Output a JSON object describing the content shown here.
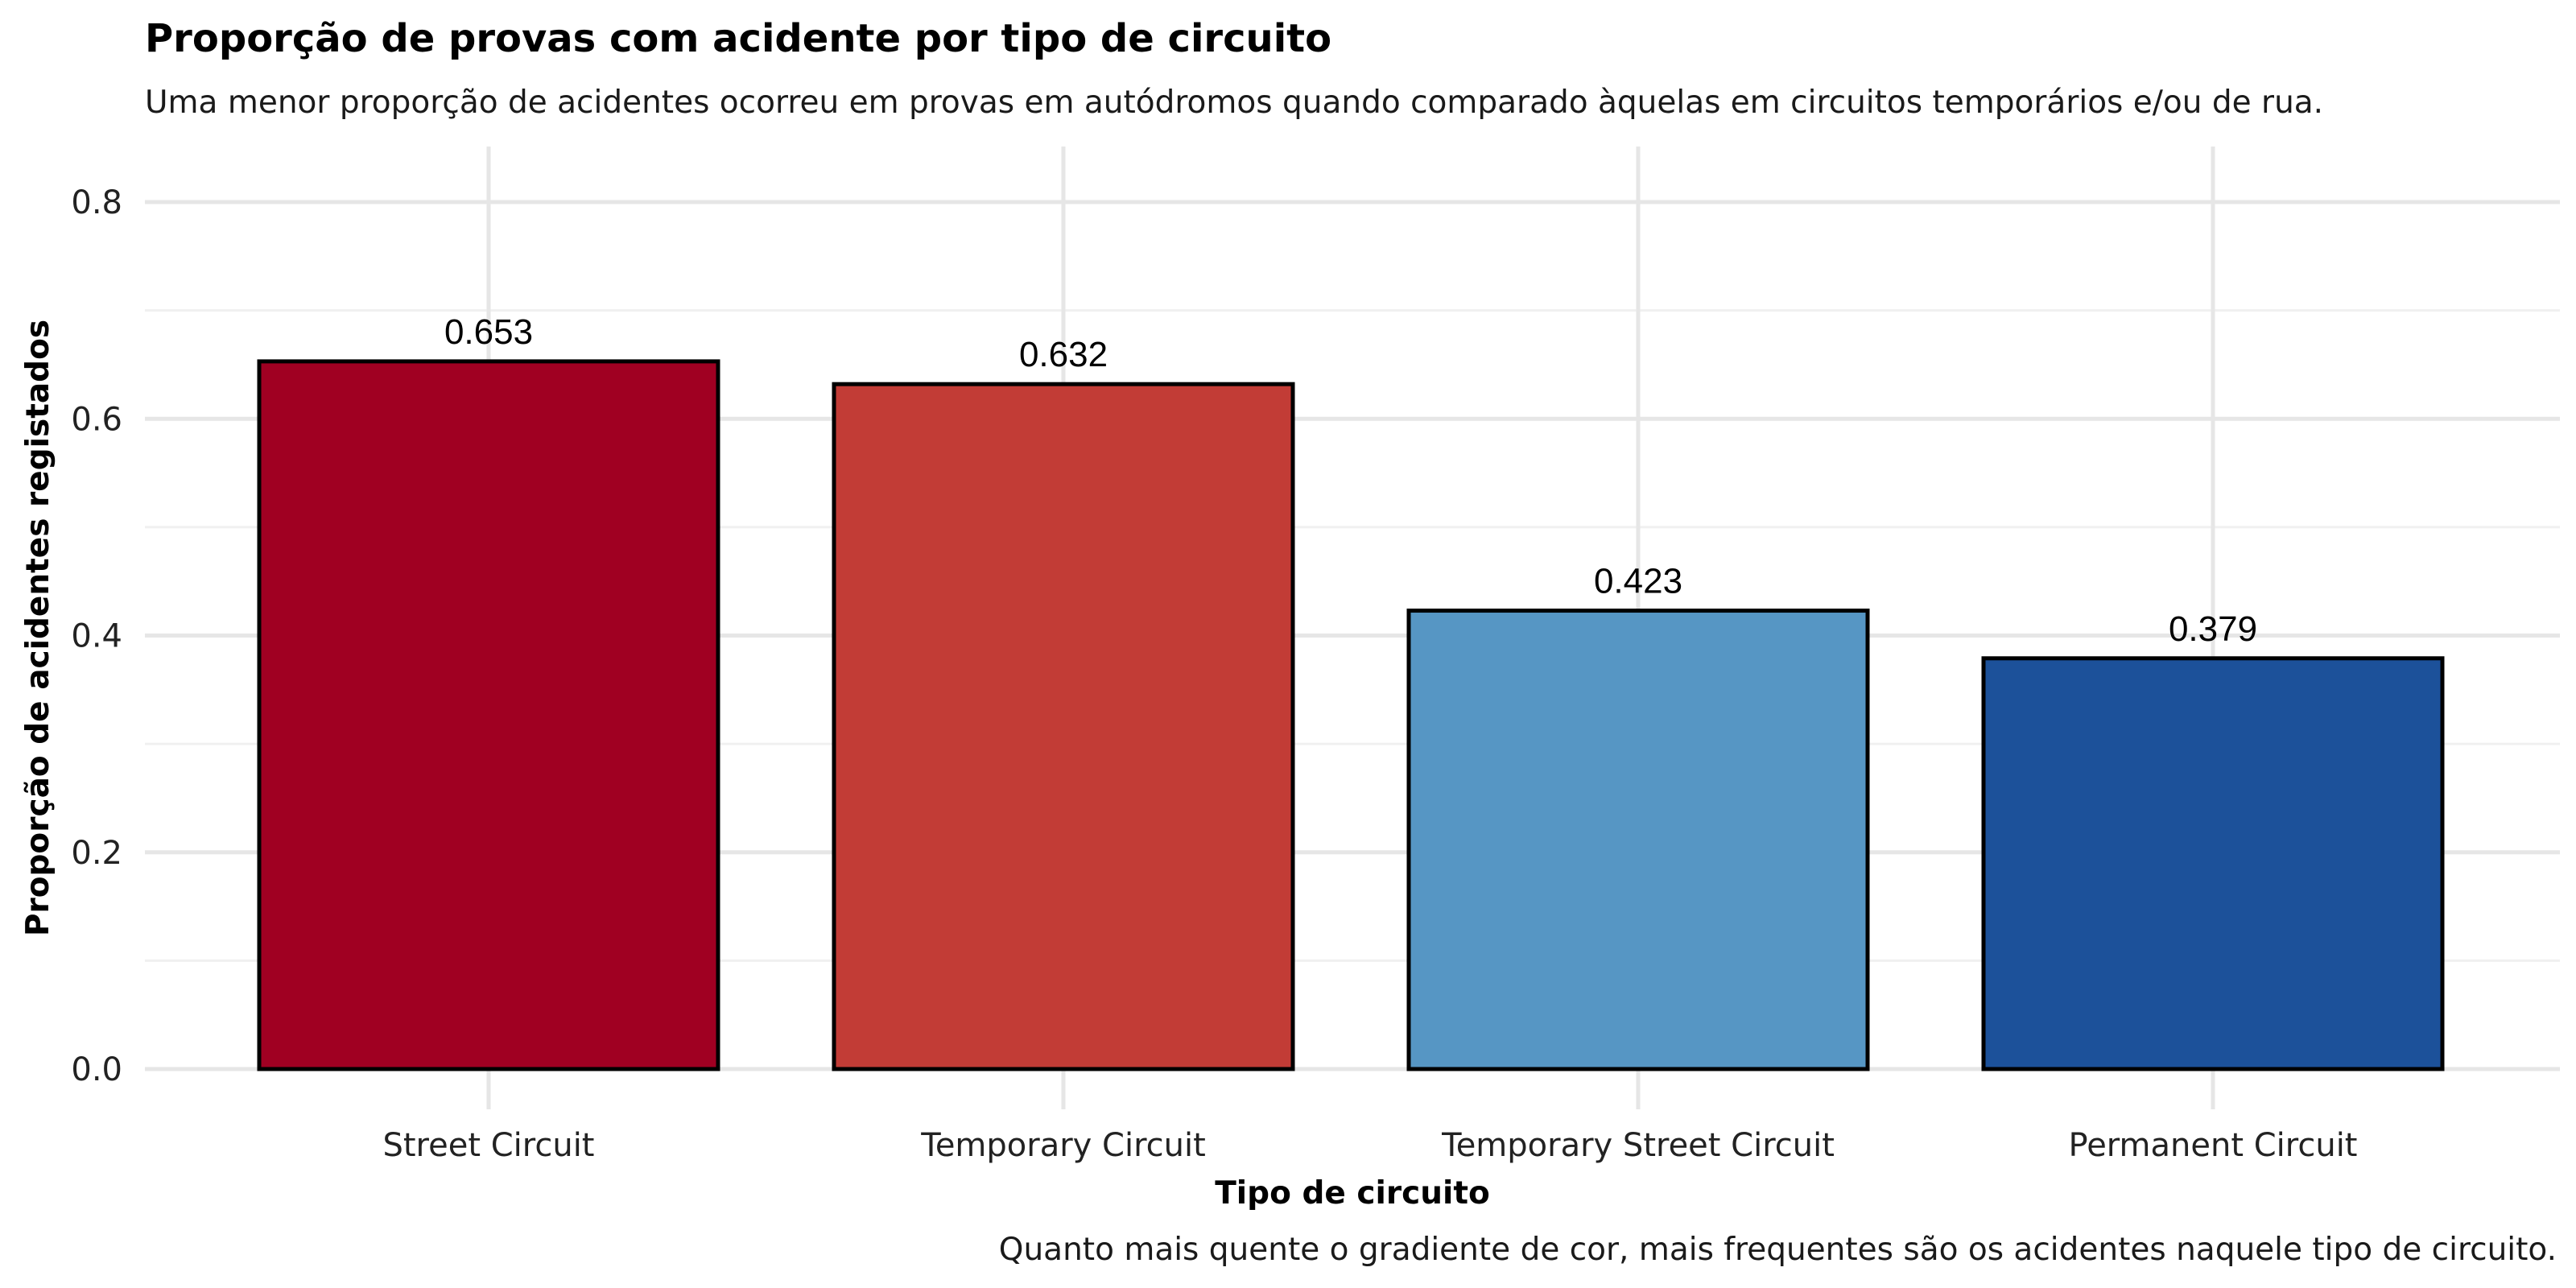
{
  "chart_data": {
    "type": "bar",
    "title": "Proporção de provas com acidente por tipo de circuito",
    "subtitle": "Uma menor proporção de acidentes ocorreu em provas em autódromos quando comparado àquelas em circuitos temporários e/ou de rua.",
    "xlabel": "Tipo de circuito",
    "ylabel": "Proporção de acidentes registados",
    "caption": "Quanto mais quente o gradiente de cor, mais frequentes são os acidentes naquele tipo de circuito.",
    "categories": [
      "Street Circuit",
      "Temporary Circuit",
      "Temporary Street Circuit",
      "Permanent Circuit"
    ],
    "values": [
      0.653,
      0.632,
      0.423,
      0.379
    ],
    "value_labels": [
      "0.653",
      "0.632",
      "0.423",
      "0.379"
    ],
    "colors": [
      "#a00022",
      "#c23c36",
      "#5696c4",
      "#1c519a"
    ],
    "ylim": [
      0,
      0.85
    ],
    "yticks": [
      0.0,
      0.2,
      0.4,
      0.6,
      0.8
    ],
    "ytick_labels": [
      "0.0",
      "0.2",
      "0.4",
      "0.6",
      "0.8"
    ],
    "grid": true,
    "legend": "none"
  }
}
